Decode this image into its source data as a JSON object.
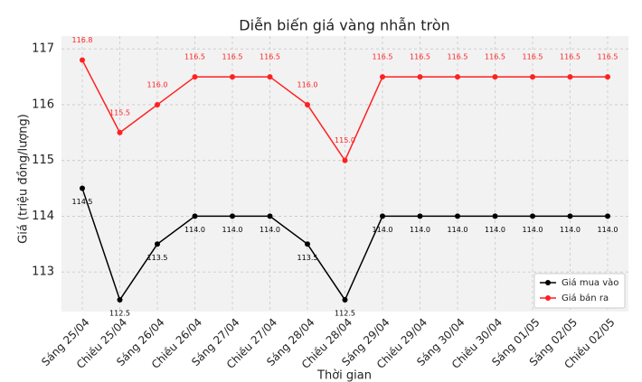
{
  "chart_data": {
    "type": "line",
    "title": "Diễn biến giá vàng nhẫn tròn",
    "x_label": "Thời gian",
    "y_label": "Giá (triệu đồng/lượng)",
    "categories": [
      "Sáng 25/04",
      "Chiều 25/04",
      "Sáng 26/04",
      "Chiều 26/04",
      "Sáng 27/04",
      "Chiều 27/04",
      "Sáng 28/04",
      "Chiều 28/04",
      "Sáng 29/04",
      "Chiều 29/04",
      "Sáng 30/04",
      "Chiều 30/04",
      "Sáng 01/05",
      "Sáng 02/05",
      "Chiều 02/05"
    ],
    "series": [
      {
        "name": "Giá mua vào",
        "color": "#000000",
        "values": [
          114.5,
          112.5,
          113.5,
          114.0,
          114.0,
          114.0,
          113.5,
          112.5,
          114.0,
          114.0,
          114.0,
          114.0,
          114.0,
          114.0,
          114.0
        ],
        "value_labels": [
          "114.5",
          "112.5",
          "113.5",
          "114.0",
          "114.0",
          "114.0",
          "113.5",
          "112.5",
          "114.0",
          "114.0",
          "114.0",
          "114.0",
          "114.0",
          "114.0",
          "114.0"
        ]
      },
      {
        "name": "Giá bán ra",
        "color": "#ff2020",
        "values": [
          116.8,
          115.5,
          116.0,
          116.5,
          116.5,
          116.5,
          116.0,
          115.0,
          116.5,
          116.5,
          116.5,
          116.5,
          116.5,
          116.5,
          116.5
        ],
        "value_labels": [
          "116.8",
          "115.5",
          "116.0",
          "116.5",
          "116.5",
          "116.5",
          "116.0",
          "115.0",
          "116.5",
          "116.5",
          "116.5",
          "116.5",
          "116.5",
          "116.5",
          "116.5"
        ]
      }
    ],
    "ylim": [
      112.29,
      117.23
    ],
    "yticks": [
      113,
      114,
      115,
      116,
      117
    ],
    "grid": true,
    "legend": "lower right"
  }
}
